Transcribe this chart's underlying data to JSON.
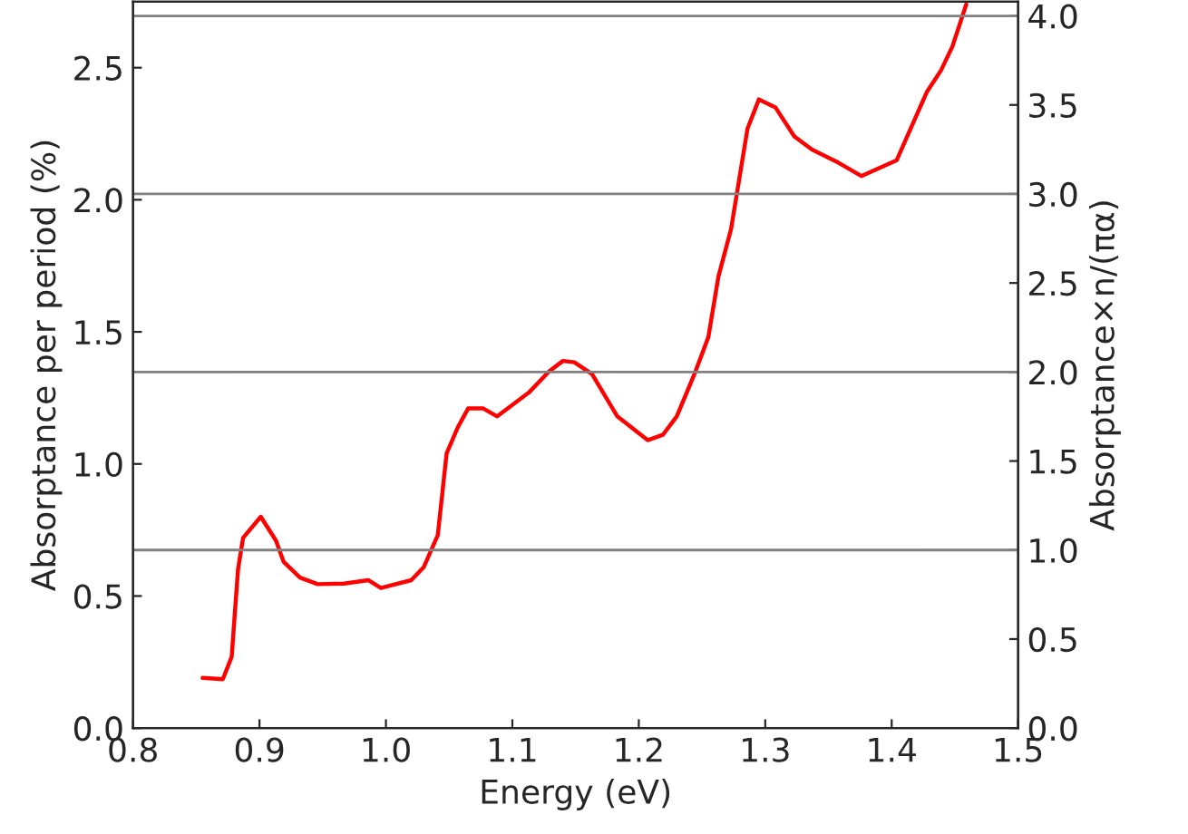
{
  "chart_data": {
    "type": "line",
    "xlabel": "Energy (eV)",
    "ylabel": "Absorptance per period (%)",
    "y2label": "Absorptance×n/(πα)",
    "xlim": [
      0.8,
      1.5
    ],
    "xticks": [
      0.8,
      0.9,
      {
        "value": 1,
        "label": "1.0"
      },
      1.1,
      1.2,
      1.3,
      1.4,
      1.5
    ],
    "ylim": [
      0.0,
      2.75
    ],
    "yticks": [
      {
        "value": 0,
        "label": "0.0"
      },
      0.5,
      {
        "value": 1,
        "label": "1.0"
      },
      1.5,
      {
        "value": 2,
        "label": "2.0"
      },
      2.5
    ],
    "y2lim": [
      0.0,
      4.08
    ],
    "y2ticks": [
      {
        "value": 0,
        "label": "0.0"
      },
      0.5,
      {
        "value": 1,
        "label": "1.0"
      },
      1.5,
      {
        "value": 2,
        "label": "2.0"
      },
      2.5,
      {
        "value": 3,
        "label": "3.0"
      },
      3.5,
      {
        "value": 4,
        "label": "4.0"
      }
    ],
    "ref_lines": [
      {
        "axis": "y2",
        "value": 1.0,
        "color": "#808080"
      },
      {
        "axis": "y2",
        "value": 2.0,
        "color": "#808080"
      },
      {
        "axis": "y2",
        "value": 3.0,
        "color": "#808080"
      },
      {
        "axis": "y2",
        "value": 4.0,
        "color": "#808080"
      }
    ],
    "grid": false,
    "legend": false,
    "series": [
      {
        "color": "#ff0000",
        "x": [
          0.855,
          0.871,
          0.878,
          0.883,
          0.887,
          0.901,
          0.913,
          0.919,
          0.932,
          0.946,
          0.967,
          0.986,
          0.996,
          1.02,
          1.03,
          1.041,
          1.048,
          1.057,
          1.065,
          1.077,
          1.088,
          1.113,
          1.129,
          1.14,
          1.149,
          1.163,
          1.183,
          1.207,
          1.219,
          1.23,
          1.244,
          1.255,
          1.263,
          1.273,
          1.286,
          1.295,
          1.308,
          1.323,
          1.337,
          1.358,
          1.376,
          1.404,
          1.428,
          1.439,
          1.448,
          1.459
        ],
        "values": [
          0.19,
          0.185,
          0.27,
          0.6,
          0.72,
          0.8,
          0.71,
          0.63,
          0.57,
          0.545,
          0.547,
          0.56,
          0.53,
          0.56,
          0.61,
          0.73,
          1.04,
          1.14,
          1.21,
          1.21,
          1.18,
          1.27,
          1.35,
          1.39,
          1.385,
          1.34,
          1.18,
          1.09,
          1.11,
          1.18,
          1.34,
          1.48,
          1.71,
          1.89,
          2.27,
          2.38,
          2.35,
          2.24,
          2.19,
          2.14,
          2.09,
          2.15,
          2.41,
          2.49,
          2.58,
          2.74
        ]
      }
    ]
  }
}
